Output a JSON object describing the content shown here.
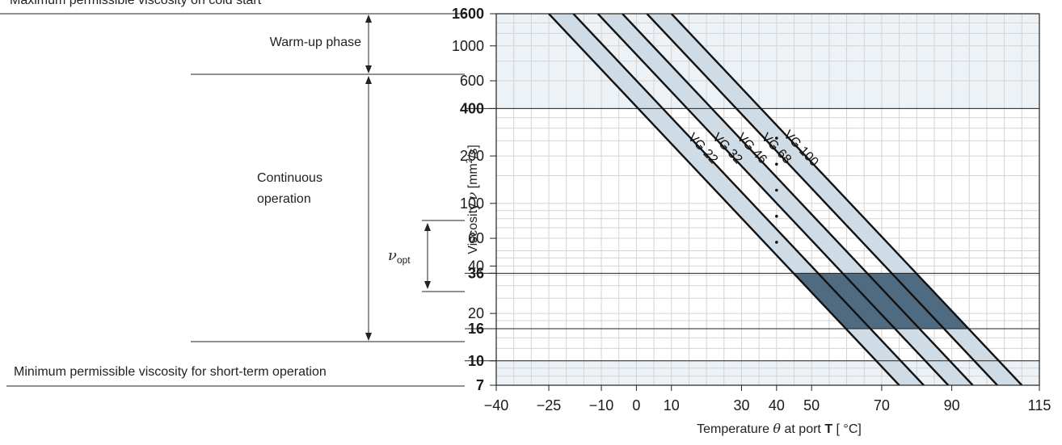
{
  "left_panel": {
    "max_viscosity_label": "Maximum permissible viscosity on cold start",
    "warmup_label": "Warm-up phase",
    "continuous_label_line1": "Continuous",
    "continuous_label_line2": "operation",
    "nu_opt_symbol": "ν",
    "nu_opt_subscript": "opt",
    "min_viscosity_label": "Minimum permissible viscosity for short-term operation"
  },
  "chart_data": {
    "type": "line",
    "ylabel_prefix": "Viscosity ",
    "ylabel_symbol": "ν",
    "ylabel_unit_pre": " [mm",
    "ylabel_unit_sup": "2",
    "ylabel_unit_post": "/s]",
    "xlabel_prefix": "Temperature ",
    "xlabel_symbol": "θ",
    "xlabel_middle": " at port ",
    "xlabel_port": "T",
    "xlabel_unit": " [ °C]",
    "xlim": [
      -40,
      115
    ],
    "ylim": [
      7,
      1600
    ],
    "y_scale": "log",
    "x_ticks": [
      {
        "value": -40,
        "label": "−40"
      },
      {
        "value": -25,
        "label": "−25"
      },
      {
        "value": -10,
        "label": "−10"
      },
      {
        "value": 0,
        "label": "0"
      },
      {
        "value": 10,
        "label": "10"
      },
      {
        "value": 30,
        "label": "30"
      },
      {
        "value": 40,
        "label": "40"
      },
      {
        "value": 50,
        "label": "50"
      },
      {
        "value": 70,
        "label": "70"
      },
      {
        "value": 90,
        "label": "90"
      },
      {
        "value": 115,
        "label": "115"
      }
    ],
    "y_ticks": [
      {
        "value": 1600,
        "label": "1600",
        "bold": true
      },
      {
        "value": 1000,
        "label": "1000",
        "bold": false
      },
      {
        "value": 600,
        "label": "600",
        "bold": false
      },
      {
        "value": 400,
        "label": "400",
        "bold": true
      },
      {
        "value": 200,
        "label": "200",
        "bold": false
      },
      {
        "value": 100,
        "label": "100",
        "bold": false
      },
      {
        "value": 60,
        "label": "60",
        "bold": false
      },
      {
        "value": 40,
        "label": "40",
        "bold": false
      },
      {
        "value": 36,
        "label": "36",
        "bold": true
      },
      {
        "value": 20,
        "label": "20",
        "bold": false
      },
      {
        "value": 16,
        "label": "16",
        "bold": true
      },
      {
        "value": 10,
        "label": "10",
        "bold": true
      },
      {
        "value": 7,
        "label": "7",
        "bold": true
      }
    ],
    "reference_lines": [
      400,
      36,
      16,
      10
    ],
    "shaded_regions": [
      {
        "from": 400,
        "to": 1600,
        "color": "#edf2f6"
      },
      {
        "from": 7,
        "to": 10,
        "color": "#edf2f6"
      }
    ],
    "optimal_range": {
      "from": 16,
      "to": 36,
      "color": "#4f6b82"
    },
    "dot_temperature": 40,
    "series": [
      {
        "name": "VG 22",
        "at_1600": -25,
        "at_7": 75
      },
      {
        "name": "VG 32",
        "at_1600": -18,
        "at_7": 82
      },
      {
        "name": "VG 46",
        "at_1600": -11,
        "at_7": 89
      },
      {
        "name": "VG 68",
        "at_1600": -4,
        "at_7": 96
      },
      {
        "name": "VG 100",
        "at_1600": 3,
        "at_7": 103
      },
      {
        "name": "",
        "at_1600": 10,
        "at_7": 110
      }
    ],
    "band_color": "#cfdce6",
    "line_color": "#111111"
  }
}
